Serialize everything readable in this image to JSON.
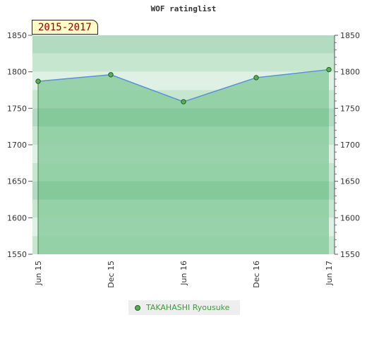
{
  "chart_data": {
    "type": "area",
    "title": "WOF ratinglist",
    "period": "2015-2017",
    "categories": [
      "Jun 15",
      "Dec 15",
      "Jun 16",
      "Dec 16",
      "Jun 17"
    ],
    "series": [
      {
        "name": "TAKAHASHI Ryousuke",
        "values": [
          1787,
          1796,
          1759,
          1792,
          1803
        ]
      }
    ],
    "ylim": [
      1550,
      1850
    ],
    "yticks": [
      1550,
      1600,
      1650,
      1700,
      1750,
      1800,
      1850
    ],
    "colors": {
      "fill": "#8ccca0",
      "line": "#5b8fd6",
      "marker_fill": "#5aac5a",
      "marker_stroke": "#1f5f1f",
      "band_light": "#dff0e4",
      "band_mid": "#c6e6d0",
      "band_dark": "#b3dbc1"
    },
    "legend": "bottom-center",
    "grid": true
  }
}
